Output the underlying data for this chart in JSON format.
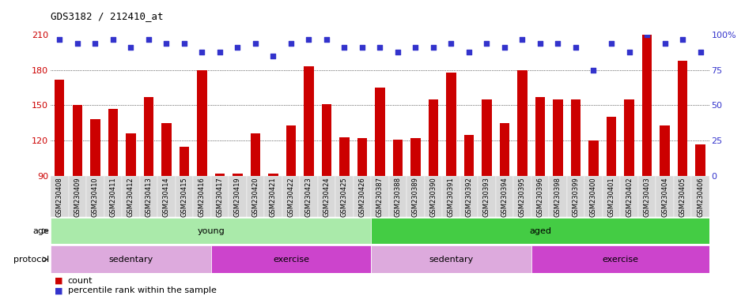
{
  "title": "GDS3182 / 212410_at",
  "samples": [
    "GSM230408",
    "GSM230409",
    "GSM230410",
    "GSM230411",
    "GSM230412",
    "GSM230413",
    "GSM230414",
    "GSM230415",
    "GSM230416",
    "GSM230417",
    "GSM230419",
    "GSM230420",
    "GSM230421",
    "GSM230422",
    "GSM230423",
    "GSM230424",
    "GSM230425",
    "GSM230426",
    "GSM230387",
    "GSM230388",
    "GSM230389",
    "GSM230390",
    "GSM230391",
    "GSM230392",
    "GSM230393",
    "GSM230394",
    "GSM230395",
    "GSM230396",
    "GSM230398",
    "GSM230399",
    "GSM230400",
    "GSM230401",
    "GSM230402",
    "GSM230403",
    "GSM230404",
    "GSM230405",
    "GSM230406"
  ],
  "bar_values": [
    172,
    150,
    138,
    147,
    126,
    157,
    135,
    115,
    180,
    92,
    92,
    126,
    92,
    133,
    183,
    151,
    123,
    122,
    165,
    121,
    122,
    155,
    178,
    125,
    155,
    135,
    180,
    157,
    155,
    155,
    120,
    140,
    155,
    210,
    133,
    188,
    117
  ],
  "percentile_values": [
    97,
    94,
    94,
    97,
    91,
    97,
    94,
    94,
    88,
    88,
    91,
    94,
    85,
    94,
    97,
    97,
    91,
    91,
    91,
    88,
    91,
    91,
    94,
    88,
    94,
    91,
    97,
    94,
    94,
    91,
    75,
    94,
    88,
    100,
    94,
    97,
    88
  ],
  "ymin": 90,
  "ymax": 210,
  "y_ticks_left": [
    90,
    120,
    150,
    180,
    210
  ],
  "y_ticks_right": [
    0,
    25,
    50,
    75,
    100
  ],
  "bar_color": "#cc0000",
  "dot_color": "#3333cc",
  "grid_lines": [
    120,
    150,
    180
  ],
  "age_groups": [
    {
      "label": "young",
      "start": 0,
      "end": 18,
      "color": "#aaeaaa"
    },
    {
      "label": "aged",
      "start": 18,
      "end": 37,
      "color": "#44cc44"
    }
  ],
  "protocol_groups": [
    {
      "label": "sedentary",
      "start": 0,
      "end": 9,
      "color": "#ddaadd"
    },
    {
      "label": "exercise",
      "start": 9,
      "end": 18,
      "color": "#cc44cc"
    },
    {
      "label": "sedentary",
      "start": 18,
      "end": 27,
      "color": "#ddaadd"
    },
    {
      "label": "exercise",
      "start": 27,
      "end": 37,
      "color": "#cc44cc"
    }
  ],
  "left_label_color": "#cc0000",
  "right_label_color": "#3333cc",
  "bg_color": "#ffffff",
  "tick_label_bg": "#d8d8d8"
}
